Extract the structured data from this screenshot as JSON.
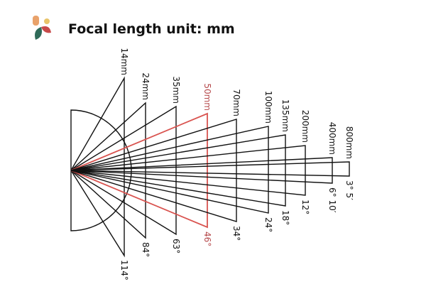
{
  "header": {
    "title": "Focal length unit: mm"
  },
  "lenses": [
    {
      "label": "14mm",
      "angle": "114°"
    },
    {
      "label": "24mm",
      "angle": "84°"
    },
    {
      "label": "35mm",
      "angle": "63°"
    },
    {
      "label": "50mm",
      "angle": "46°"
    },
    {
      "label": "70mm",
      "angle": "34°"
    },
    {
      "label": "100mm",
      "angle": "24°"
    },
    {
      "label": "135mm",
      "angle": "18°"
    },
    {
      "label": "200mm",
      "angle": "12°"
    },
    {
      "label": "400mm",
      "angle": "6° 10′"
    },
    {
      "label": "800mm",
      "angle": "3° 5′"
    }
  ]
}
